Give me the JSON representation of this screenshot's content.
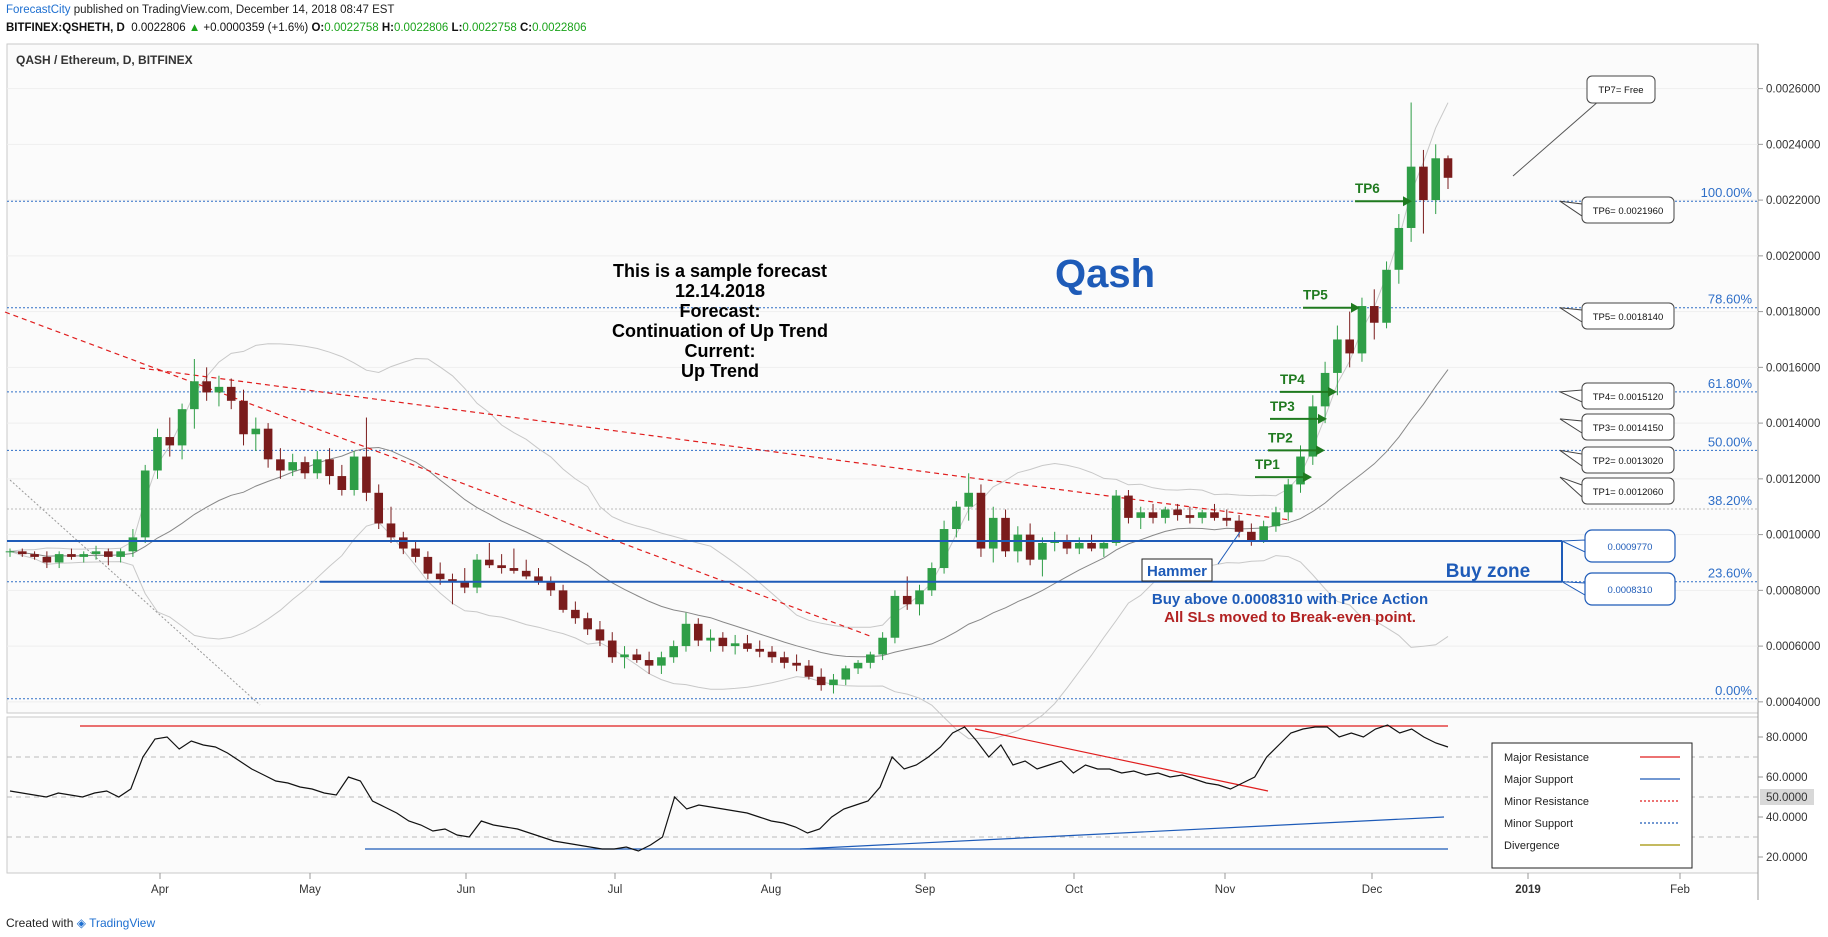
{
  "header": {
    "brand": "ForecastCity",
    "published": "published on TradingView.com, December 14, 2018 08:47 EST",
    "symbol": "BITFINEX:QSHETH, D",
    "last": "0.0022806",
    "change": "+0.0000359 (+1.6%)",
    "o_label": "O:",
    "o": "0.0022758",
    "h_label": "H:",
    "h": "0.0022806",
    "l_label": "L:",
    "l": "0.0022758",
    "c_label": "C:",
    "c": "0.0022806"
  },
  "footer": {
    "created": "Created with",
    "tv": "TradingView"
  },
  "chart_data": {
    "type": "candlestick",
    "title": "QASH / Ethereum, D, BITFINEX",
    "watermark": "Qash",
    "sample_text": [
      "This is a sample forecast",
      "12.14.2018",
      "Forecast:",
      "Continuation of Up Trend",
      "Current:",
      "Up Trend"
    ],
    "price_axis": [
      "0.0004000",
      "0.0006000",
      "0.0008000",
      "0.0010000",
      "0.0012000",
      "0.0014000",
      "0.0016000",
      "0.0018000",
      "0.0020000",
      "0.0022000",
      "0.0024000",
      "0.0026000"
    ],
    "x_labels": [
      "Apr",
      "May",
      "Jun",
      "Jul",
      "Aug",
      "Sep",
      "Oct",
      "Nov",
      "Dec",
      "2019",
      "Feb"
    ],
    "ylim": [
      0.00036,
      0.00276
    ],
    "fib_levels": [
      {
        "label": "100.00%",
        "value": 0.002196
      },
      {
        "label": "78.60%",
        "value": 0.001814
      },
      {
        "label": "61.80%",
        "value": 0.001512
      },
      {
        "label": "50.00%",
        "value": 0.001302
      },
      {
        "label": "38.20%",
        "value": 0.001092
      },
      {
        "label": "23.60%",
        "value": 0.000831
      },
      {
        "label": "0.00%",
        "value": 0.000411
      }
    ],
    "take_profits": [
      {
        "label": "TP1",
        "callout": "TP1= 0.0012060",
        "value": 0.001206
      },
      {
        "label": "TP2",
        "callout": "TP2= 0.0013020",
        "value": 0.001302
      },
      {
        "label": "TP3",
        "callout": "TP3= 0.0014150",
        "value": 0.001415
      },
      {
        "label": "TP4",
        "callout": "TP4= 0.0015120",
        "value": 0.001512
      },
      {
        "label": "TP5",
        "callout": "TP5= 0.0018140",
        "value": 0.001814
      },
      {
        "label": "TP6",
        "callout": "TP6= 0.0021960",
        "value": 0.002196
      }
    ],
    "tp7": "TP7= Free",
    "support_levels": [
      {
        "callout": "0.0009770",
        "value": 0.000977
      },
      {
        "callout": "0.0008310",
        "value": 0.000831
      }
    ],
    "buy_zone": "Buy zone",
    "hammer": "Hammer",
    "buy_text": "Buy above 0.0008310 with Price Action",
    "sl_text": "All SLs moved to Break-even point.",
    "candles": [
      [
        0.00094,
        0.00095,
        0.00092,
        0.00094
      ],
      [
        0.00094,
        0.00095,
        0.00092,
        0.00093
      ],
      [
        0.00093,
        0.00094,
        0.00091,
        0.00092
      ],
      [
        0.00092,
        0.00094,
        0.00088,
        0.0009
      ],
      [
        0.0009,
        0.00094,
        0.00088,
        0.00093
      ],
      [
        0.00093,
        0.00095,
        0.00091,
        0.00092
      ],
      [
        0.00092,
        0.00094,
        0.0009,
        0.00093
      ],
      [
        0.00093,
        0.00096,
        0.00091,
        0.00094
      ],
      [
        0.00094,
        0.00095,
        0.00089,
        0.00092
      ],
      [
        0.00092,
        0.00095,
        0.0009,
        0.00094
      ],
      [
        0.00094,
        0.00102,
        0.00092,
        0.00099
      ],
      [
        0.00099,
        0.00125,
        0.00097,
        0.00123
      ],
      [
        0.00123,
        0.00138,
        0.0012,
        0.00135
      ],
      [
        0.00135,
        0.00142,
        0.00128,
        0.00132
      ],
      [
        0.00132,
        0.00147,
        0.00127,
        0.00145
      ],
      [
        0.00145,
        0.00163,
        0.00138,
        0.00155
      ],
      [
        0.00155,
        0.0016,
        0.00148,
        0.00151
      ],
      [
        0.00151,
        0.00157,
        0.00146,
        0.00153
      ],
      [
        0.00153,
        0.00156,
        0.00145,
        0.00148
      ],
      [
        0.00148,
        0.00152,
        0.00132,
        0.00136
      ],
      [
        0.00136,
        0.00142,
        0.0013,
        0.00138
      ],
      [
        0.00138,
        0.0014,
        0.00124,
        0.00127
      ],
      [
        0.00127,
        0.00131,
        0.0012,
        0.00123
      ],
      [
        0.00123,
        0.00129,
        0.00121,
        0.00126
      ],
      [
        0.00126,
        0.00128,
        0.0012,
        0.00122
      ],
      [
        0.00122,
        0.0013,
        0.0012,
        0.00127
      ],
      [
        0.00127,
        0.00131,
        0.00118,
        0.00121
      ],
      [
        0.00121,
        0.00125,
        0.00114,
        0.00116
      ],
      [
        0.00116,
        0.0013,
        0.00114,
        0.00128
      ],
      [
        0.00128,
        0.00142,
        0.00112,
        0.00115
      ],
      [
        0.00115,
        0.00118,
        0.00102,
        0.00104
      ],
      [
        0.00104,
        0.0011,
        0.00097,
        0.00099
      ],
      [
        0.00099,
        0.00101,
        0.00093,
        0.00095
      ],
      [
        0.00095,
        0.00098,
        0.0009,
        0.00092
      ],
      [
        0.00092,
        0.00094,
        0.00084,
        0.00086
      ],
      [
        0.00086,
        0.0009,
        0.00082,
        0.00084
      ],
      [
        0.00084,
        0.00086,
        0.00075,
        0.00083
      ],
      [
        0.00083,
        0.00088,
        0.00079,
        0.00081
      ],
      [
        0.00081,
        0.00093,
        0.00079,
        0.00091
      ],
      [
        0.00091,
        0.00097,
        0.00088,
        0.00089
      ],
      [
        0.00089,
        0.00093,
        0.00086,
        0.00088
      ],
      [
        0.00088,
        0.00095,
        0.00086,
        0.00087
      ],
      [
        0.00087,
        0.00091,
        0.00084,
        0.00085
      ],
      [
        0.00085,
        0.00088,
        0.00082,
        0.00083
      ],
      [
        0.00083,
        0.00085,
        0.00078,
        0.0008
      ],
      [
        0.0008,
        0.00082,
        0.00072,
        0.00073
      ],
      [
        0.00073,
        0.00076,
        0.00068,
        0.0007
      ],
      [
        0.0007,
        0.00072,
        0.00064,
        0.00066
      ],
      [
        0.00066,
        0.00069,
        0.0006,
        0.00062
      ],
      [
        0.00062,
        0.00065,
        0.00054,
        0.00056
      ],
      [
        0.00056,
        0.0006,
        0.00052,
        0.00057
      ],
      [
        0.00057,
        0.00059,
        0.00054,
        0.00055
      ],
      [
        0.00055,
        0.00058,
        0.0005,
        0.00053
      ],
      [
        0.00053,
        0.00058,
        0.0005,
        0.00056
      ],
      [
        0.00056,
        0.00062,
        0.00054,
        0.0006
      ],
      [
        0.0006,
        0.00072,
        0.00058,
        0.00068
      ],
      [
        0.00068,
        0.0007,
        0.0006,
        0.00062
      ],
      [
        0.00062,
        0.00066,
        0.00058,
        0.00063
      ],
      [
        0.00063,
        0.00065,
        0.00058,
        0.0006
      ],
      [
        0.0006,
        0.00064,
        0.00057,
        0.00061
      ],
      [
        0.00061,
        0.00064,
        0.00058,
        0.00059
      ],
      [
        0.00059,
        0.00062,
        0.00056,
        0.00058
      ],
      [
        0.00058,
        0.0006,
        0.00054,
        0.00056
      ],
      [
        0.00056,
        0.00058,
        0.00052,
        0.00054
      ],
      [
        0.00054,
        0.00057,
        0.00051,
        0.00053
      ],
      [
        0.00053,
        0.00055,
        0.00048,
        0.00049
      ],
      [
        0.00049,
        0.00052,
        0.00044,
        0.00046
      ],
      [
        0.00046,
        0.0005,
        0.00043,
        0.00048
      ],
      [
        0.00048,
        0.00053,
        0.00046,
        0.00052
      ],
      [
        0.00052,
        0.00055,
        0.0005,
        0.00054
      ],
      [
        0.00054,
        0.00058,
        0.00052,
        0.00057
      ],
      [
        0.00057,
        0.00065,
        0.00055,
        0.00063
      ],
      [
        0.00063,
        0.0008,
        0.00061,
        0.00078
      ],
      [
        0.00078,
        0.00085,
        0.00073,
        0.00075
      ],
      [
        0.00075,
        0.00082,
        0.00071,
        0.0008
      ],
      [
        0.0008,
        0.0009,
        0.00078,
        0.00088
      ],
      [
        0.00088,
        0.00105,
        0.00086,
        0.00102
      ],
      [
        0.00102,
        0.00112,
        0.00099,
        0.0011
      ],
      [
        0.0011,
        0.00122,
        0.00105,
        0.00115
      ],
      [
        0.00115,
        0.00118,
        0.00092,
        0.00095
      ],
      [
        0.00095,
        0.0011,
        0.0009,
        0.00106
      ],
      [
        0.00106,
        0.00109,
        0.00092,
        0.00094
      ],
      [
        0.00094,
        0.00103,
        0.0009,
        0.001
      ],
      [
        0.001,
        0.00104,
        0.00089,
        0.00091
      ],
      [
        0.00091,
        0.00099,
        0.00085,
        0.00097
      ],
      [
        0.00097,
        0.00101,
        0.00094,
        0.00098
      ],
      [
        0.00098,
        0.001,
        0.00093,
        0.00095
      ],
      [
        0.00095,
        0.00099,
        0.00093,
        0.00097
      ],
      [
        0.00097,
        0.001,
        0.00094,
        0.00095
      ],
      [
        0.00095,
        0.00098,
        0.00092,
        0.00097
      ],
      [
        0.00097,
        0.00116,
        0.00096,
        0.00114
      ],
      [
        0.00114,
        0.00116,
        0.00104,
        0.00106
      ],
      [
        0.00106,
        0.0011,
        0.00102,
        0.00108
      ],
      [
        0.00108,
        0.00111,
        0.00104,
        0.00106
      ],
      [
        0.00106,
        0.0011,
        0.00104,
        0.00109
      ],
      [
        0.00109,
        0.00111,
        0.00105,
        0.00107
      ],
      [
        0.00107,
        0.0011,
        0.00104,
        0.00106
      ],
      [
        0.00106,
        0.00109,
        0.00104,
        0.00108
      ],
      [
        0.00108,
        0.00111,
        0.00105,
        0.00106
      ],
      [
        0.00106,
        0.00109,
        0.00103,
        0.00105
      ],
      [
        0.00105,
        0.00107,
        0.00099,
        0.00101
      ],
      [
        0.00101,
        0.00104,
        0.00096,
        0.00098
      ],
      [
        0.00098,
        0.00105,
        0.00097,
        0.00103
      ],
      [
        0.00103,
        0.0011,
        0.00101,
        0.00108
      ],
      [
        0.00108,
        0.0012,
        0.00105,
        0.00118
      ],
      [
        0.00118,
        0.00132,
        0.00115,
        0.00128
      ],
      [
        0.00128,
        0.0015,
        0.00125,
        0.00146
      ],
      [
        0.00146,
        0.00162,
        0.0014,
        0.00158
      ],
      [
        0.00158,
        0.00175,
        0.0015,
        0.0017
      ],
      [
        0.0017,
        0.0018,
        0.0016,
        0.00165
      ],
      [
        0.00165,
        0.00185,
        0.00162,
        0.00182
      ],
      [
        0.00182,
        0.00188,
        0.0017,
        0.00176
      ],
      [
        0.00176,
        0.00198,
        0.00174,
        0.00195
      ],
      [
        0.00195,
        0.00215,
        0.0019,
        0.0021
      ],
      [
        0.0021,
        0.00255,
        0.00205,
        0.00232
      ],
      [
        0.00232,
        0.00238,
        0.00208,
        0.0022
      ],
      [
        0.0022,
        0.0024,
        0.00215,
        0.00235
      ],
      [
        0.00235,
        0.00236,
        0.00224,
        0.00228
      ]
    ],
    "rsi": [
      53,
      52,
      51,
      50,
      52,
      51,
      50,
      52,
      53,
      50,
      54,
      70,
      79,
      80,
      74,
      78,
      76,
      75,
      72,
      68,
      64,
      61,
      58,
      57,
      55,
      54,
      52,
      51,
      60,
      58,
      48,
      45,
      42,
      38,
      36,
      33,
      34,
      31,
      30,
      38,
      36,
      35,
      34,
      32,
      30,
      28,
      27,
      26,
      25,
      24,
      24,
      25,
      23,
      26,
      30,
      50,
      44,
      46,
      45,
      44,
      43,
      42,
      40,
      38,
      37,
      35,
      32,
      34,
      40,
      44,
      46,
      48,
      55,
      70,
      64,
      66,
      70,
      75,
      82,
      85,
      78,
      70,
      76,
      66,
      68,
      64,
      66,
      68,
      62,
      66,
      64,
      64,
      62,
      63,
      61,
      62,
      60,
      61,
      59,
      57,
      56,
      54,
      57,
      60,
      70,
      76,
      82,
      84,
      85,
      85,
      80,
      82,
      80,
      84,
      86,
      82,
      84,
      80,
      77,
      75
    ],
    "rsi_axis": [
      "20.0000",
      "40.0000",
      "60.0000",
      "80.0000"
    ],
    "rsi_marker": "50.0000",
    "legend": [
      "Major Resistance",
      "Major Support",
      "Minor Resistance",
      "Minor Support",
      "Divergence"
    ],
    "colors": {
      "up": "#2f9e47",
      "down": "#7a1c1c",
      "support": "#1e5bb8",
      "resistance": "#e01e1e",
      "fib": "#2f6fc8",
      "tp": "#1f7a1f",
      "sl": "#b22222"
    }
  }
}
